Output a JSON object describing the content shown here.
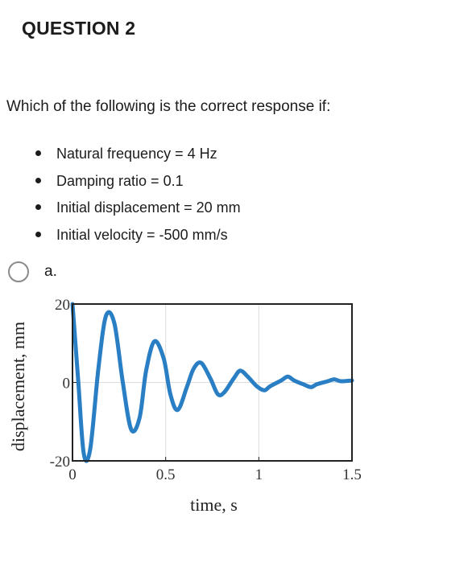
{
  "question": {
    "heading": "QUESTION 2",
    "prompt": "Which of the following is the correct response if:",
    "conditions": [
      "Natural frequency = 4 Hz",
      "Damping ratio = 0.1",
      "Initial displacement = 20 mm",
      "Initial velocity = -500 mm/s"
    ]
  },
  "option": {
    "label": "a.",
    "selected": false
  },
  "chart_data": {
    "type": "line",
    "xlabel": "time, s",
    "ylabel": "displacement, mm",
    "xlim": [
      0,
      1.5
    ],
    "ylim": [
      -20,
      20
    ],
    "xticks": [
      0,
      0.5,
      1,
      1.5
    ],
    "xtick_labels": [
      "0",
      "0.5",
      "1",
      "1.5"
    ],
    "yticks": [
      -20,
      0,
      20
    ],
    "ytick_labels": [
      "-20",
      "0",
      "20"
    ],
    "grid": true,
    "line_color": "#2a7fc4",
    "series": [
      {
        "x": [
          0,
          0.03,
          0.06,
          0.095,
          0.14,
          0.18,
          0.225,
          0.27,
          0.315,
          0.36,
          0.395,
          0.44,
          0.49,
          0.525,
          0.565,
          0.615,
          0.65,
          0.69,
          0.74,
          0.78,
          0.815,
          0.865,
          0.9,
          0.94,
          0.99,
          1.03,
          1.06,
          1.12,
          1.155,
          1.19,
          1.24,
          1.28,
          1.31,
          1.37,
          1.405,
          1.44,
          1.5
        ],
        "y": [
          20,
          1,
          -18,
          -17,
          4,
          17,
          15,
          0,
          -12,
          -9,
          3,
          10.5,
          6,
          -3,
          -7,
          -1,
          3.5,
          5,
          1,
          -3,
          -2.5,
          1,
          3,
          1.5,
          -1,
          -2,
          -1,
          0.5,
          1.5,
          0.5,
          -0.5,
          -1.2,
          -0.5,
          0.3,
          0.8,
          0.3,
          0.5
        ]
      }
    ]
  }
}
